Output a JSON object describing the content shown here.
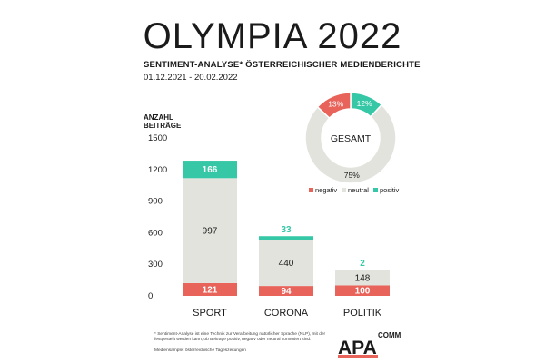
{
  "header": {
    "title": "OLYMPIA 2022",
    "subtitle": "SENTIMENT-ANALYSE* ÖSTERREICHISCHER MEDIENBERICHTE",
    "date_range": "01.12.2021 - 20.02.2022"
  },
  "footer": {
    "footnote": "* Sentiment-Analyse ist eine Technik zur Verarbeitung natürlicher Sprache (NLP), mit der festgestellt werden kann, ob Beiträge positiv, negativ oder neutral konnotiert sind.",
    "source": "Mediensample: österreichische Tageszeitungen",
    "logo_text": "APA",
    "logo_suffix": "COMM"
  },
  "colors": {
    "negativ": "#e8635a",
    "neutral": "#e3e3de",
    "positiv": "#35c7a6",
    "text": "#1a1a1a"
  },
  "chart_data": [
    {
      "type": "bar",
      "stacked": true,
      "ylabel": "ANZAHL BEITRÄGE",
      "ylim": [
        0,
        1500
      ],
      "yticks": [
        0,
        300,
        600,
        900,
        1200,
        1500
      ],
      "categories": [
        "SPORT",
        "CORONA",
        "POLITIK"
      ],
      "series": [
        {
          "name": "negativ",
          "values": [
            121,
            94,
            100
          ]
        },
        {
          "name": "neutral",
          "values": [
            997,
            440,
            148
          ]
        },
        {
          "name": "positiv",
          "values": [
            166,
            33,
            2
          ]
        }
      ],
      "grid": false
    },
    {
      "type": "pie",
      "donut": true,
      "center_label": "GESAMT",
      "labels": [
        "negativ",
        "neutral",
        "positiv"
      ],
      "values": [
        13,
        75,
        12
      ],
      "value_labels": [
        "13%",
        "75%",
        "12%"
      ],
      "legend": [
        "negativ",
        "neutral",
        "positiv"
      ],
      "legend_position": "bottom"
    }
  ]
}
